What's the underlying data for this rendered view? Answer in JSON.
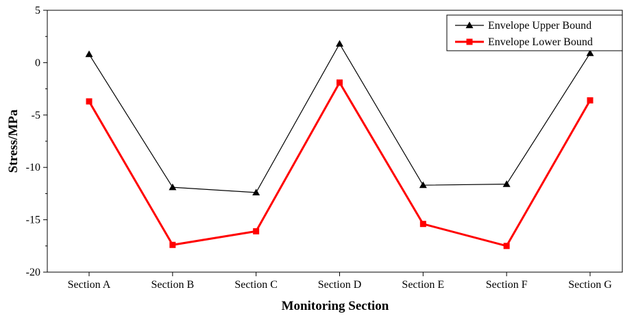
{
  "chart_data": {
    "type": "line",
    "title": "",
    "xlabel": "Monitoring Section",
    "ylabel": "Stress/MPa",
    "categories": [
      "Section A",
      "Section B",
      "Section C",
      "Section D",
      "Section E",
      "Section F",
      "Section G"
    ],
    "ylim": [
      -20,
      5
    ],
    "yticks": [
      5,
      0,
      -5,
      -10,
      -15,
      -20
    ],
    "grid": false,
    "legend_position": "top-right",
    "series": [
      {
        "name": "Envelope Upper Bound",
        "color": "#000000",
        "marker": "triangle",
        "values": [
          0.8,
          -11.9,
          -12.4,
          1.8,
          -11.7,
          -11.6,
          0.9
        ]
      },
      {
        "name": "Envelope Lower Bound",
        "color": "#ff0000",
        "marker": "square",
        "values": [
          -3.7,
          -17.4,
          -16.1,
          -1.9,
          -15.4,
          -17.5,
          -3.6
        ]
      }
    ]
  }
}
